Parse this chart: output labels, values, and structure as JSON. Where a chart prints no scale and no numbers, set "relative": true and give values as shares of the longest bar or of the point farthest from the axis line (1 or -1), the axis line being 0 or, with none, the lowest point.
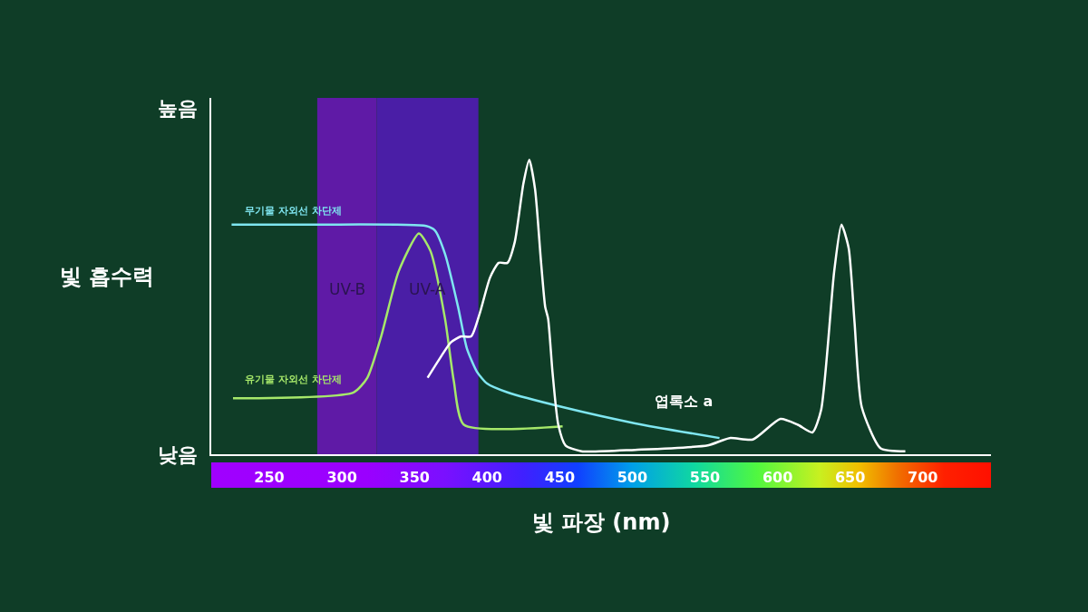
{
  "chart_data": {
    "type": "line",
    "relative": true,
    "xlabel": "빛 파장 (nm)",
    "ylabel": "빛 흡수력",
    "xlim": [
      210,
      747
    ],
    "xticks": [
      250,
      300,
      350,
      400,
      450,
      500,
      550,
      600,
      650,
      700
    ],
    "grid": false,
    "marker": "none",
    "line_style": "solid",
    "bands": [
      {
        "axis": "x",
        "from": 283,
        "to": 324,
        "label": "UV-B",
        "color": "#5f1aa6"
      },
      {
        "axis": "x",
        "from": 324,
        "to": 394,
        "label": "UV-A",
        "color": "#4a1ea6"
      }
    ],
    "annotations": [
      "높음",
      "낮음",
      "무기물 자외선 차단제",
      "유기물 자외선 차단제",
      "엽록소 a"
    ],
    "series": [
      {
        "color": "#7fe6f0",
        "x": [
          224,
          283,
          358,
          364,
          371,
          380,
          386,
          393,
          400,
          414,
          452,
          502,
          560
        ],
        "values": [
          0.78,
          0.78,
          0.775,
          0.76,
          0.68,
          0.5,
          0.36,
          0.28,
          0.24,
          0.21,
          0.16,
          0.105,
          0.055
        ]
      },
      {
        "color": "#a6e86a",
        "x": [
          225,
          308,
          317.5,
          327,
          339,
          353,
          361,
          371,
          377,
          384,
          452
        ],
        "values": [
          0.19,
          0.21,
          0.26,
          0.4,
          0.62,
          0.75,
          0.69,
          0.46,
          0.25,
          0.1,
          0.095
        ]
      },
      {
        "color": "#ffffff",
        "x": [
          359,
          368,
          375,
          382,
          389,
          395,
          402,
          408,
          414,
          419,
          425,
          429,
          433,
          437,
          440,
          442,
          445,
          449,
          454,
          465,
          502,
          552,
          567,
          583,
          602,
          614,
          624,
          630,
          639,
          644,
          649,
          653,
          658,
          671,
          688
        ],
        "values": [
          0.26,
          0.33,
          0.38,
          0.4,
          0.4,
          0.48,
          0.6,
          0.65,
          0.65,
          0.72,
          0.92,
          1,
          0.9,
          0.66,
          0.5,
          0.46,
          0.28,
          0.1,
          0.03,
          0.01,
          0.015,
          0.03,
          0.055,
          0.05,
          0.12,
          0.1,
          0.074,
          0.15,
          0.62,
          0.78,
          0.7,
          0.45,
          0.16,
          0.02,
          0.01
        ]
      }
    ]
  }
}
